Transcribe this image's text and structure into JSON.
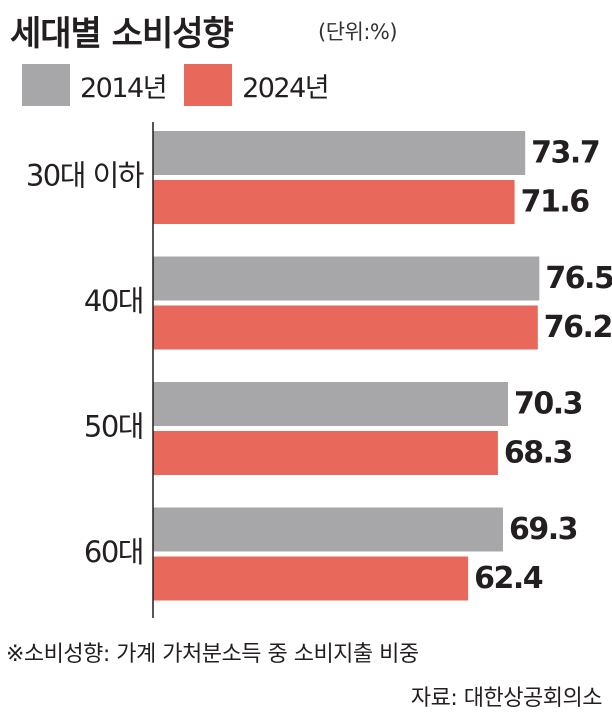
{
  "header": {
    "title": "세대별 소비성향",
    "unit": "(단위:%)"
  },
  "colors": {
    "series_2014": "#a7a7a9",
    "series_2024": "#e8685c",
    "axis": "#231f20"
  },
  "chart_data": {
    "type": "bar",
    "orientation": "horizontal",
    "categories": [
      "30대 이하",
      "40대",
      "50대",
      "60대"
    ],
    "series": [
      {
        "name": "2014년",
        "values": [
          73.7,
          76.5,
          70.3,
          69.3
        ]
      },
      {
        "name": "2024년",
        "values": [
          71.6,
          76.2,
          68.3,
          62.4
        ]
      }
    ],
    "title": "세대별 소비성향",
    "unit": "(단위:%)",
    "xlim": [
      0,
      90
    ],
    "grid": false,
    "legend": "top-left",
    "data_labels": true
  },
  "footer": {
    "note": "※소비성향: 가계 가처분소득 중 소비지출 비중",
    "source": "자료: 대한상공회의소"
  }
}
